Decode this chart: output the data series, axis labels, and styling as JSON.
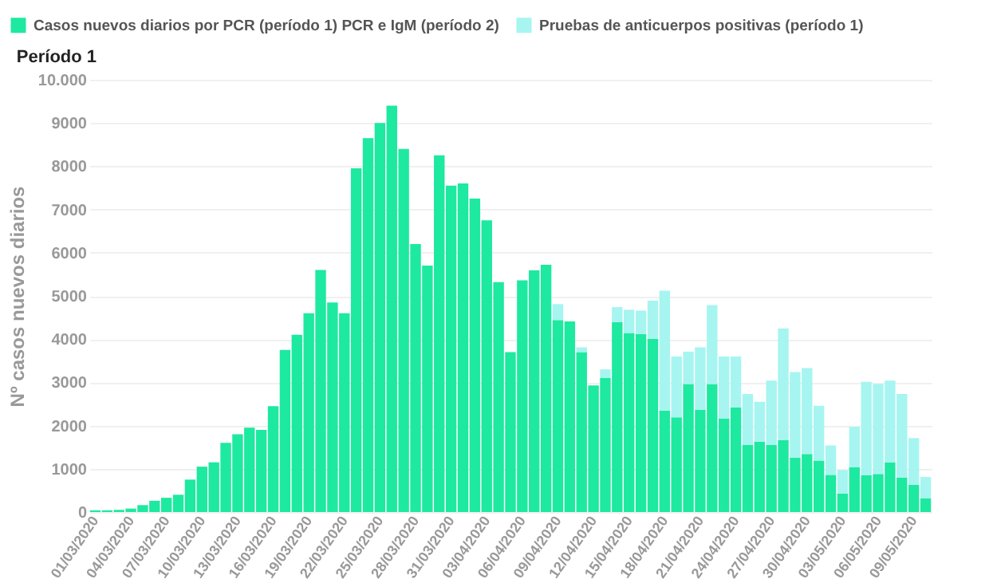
{
  "chart_data": {
    "type": "bar",
    "title": "Período 1",
    "ylabel": "Nº casos nuevos diarios",
    "categories": [
      "01/03/2020",
      null,
      null,
      "04/03/2020",
      null,
      null,
      "07/03/2020",
      null,
      null,
      "10/03/2020",
      null,
      null,
      "13/03/2020",
      null,
      null,
      "16/03/2020",
      null,
      null,
      "19/03/2020",
      null,
      null,
      "22/03/2020",
      null,
      null,
      "25/03/2020",
      null,
      null,
      "28/03/2020",
      null,
      null,
      "31/03/2020",
      null,
      null,
      "03/04/2020",
      null,
      null,
      "06/04/2020",
      null,
      null,
      "09/04/2020",
      null,
      null,
      "12/04/2020",
      null,
      null,
      "15/04/2020",
      null,
      null,
      "18/04/2020",
      null,
      null,
      "21/04/2020",
      null,
      null,
      "24/04/2020",
      null,
      null,
      "27/04/2020",
      null,
      null,
      "30/04/2020",
      null,
      null,
      "03/05/2020",
      null,
      null,
      "06/05/2020",
      null,
      null,
      "09/05/2020",
      null
    ],
    "series": [
      {
        "name": "Casos nuevos diarios por PCR (período 1) PCR e IgM (período 2)",
        "color": "#1de9a0",
        "values": [
          40,
          40,
          50,
          80,
          160,
          260,
          330,
          400,
          750,
          1050,
          1150,
          1600,
          1800,
          1950,
          1900,
          2450,
          3750,
          4100,
          4600,
          5600,
          4850,
          4600,
          7950,
          8650,
          9000,
          9400,
          8400,
          6200,
          5700,
          8250,
          7550,
          7600,
          7250,
          6750,
          5320,
          3700,
          5360,
          5590,
          5720,
          4440,
          4410,
          3700,
          2930,
          3100,
          4390,
          4140,
          4120,
          4010,
          2350,
          2190,
          2960,
          2360,
          2960,
          2160,
          2420,
          1550,
          1630,
          1550,
          1660,
          1260,
          1340,
          1190,
          860,
          430,
          1040,
          850,
          880,
          1150,
          800,
          630,
          320
        ]
      },
      {
        "name": "Pruebas de anticuerpos positivas (período 1)",
        "color": "#a6f5f0",
        "values": [
          null,
          null,
          null,
          null,
          null,
          null,
          null,
          null,
          null,
          null,
          null,
          null,
          null,
          null,
          null,
          null,
          null,
          null,
          null,
          null,
          null,
          null,
          null,
          null,
          null,
          null,
          null,
          null,
          null,
          null,
          null,
          null,
          null,
          null,
          null,
          null,
          null,
          null,
          null,
          370,
          null,
          110,
          null,
          200,
          350,
          540,
          540,
          880,
          2770,
          1410,
          750,
          1450,
          1830,
          1440,
          1180,
          1180,
          920,
          1490,
          2590,
          1980,
          1990,
          1270,
          680,
          540,
          930,
          2160,
          2080,
          1890,
          1930,
          1080,
          490
        ]
      }
    ],
    "stacked": true,
    "ylim": [
      0,
      10000
    ],
    "yticks": [
      0,
      1000,
      2000,
      3000,
      4000,
      5000,
      6000,
      7000,
      8000,
      9000,
      {
        "value": 10000,
        "label": "10.000"
      }
    ],
    "grid": "y",
    "legend": "top left"
  }
}
